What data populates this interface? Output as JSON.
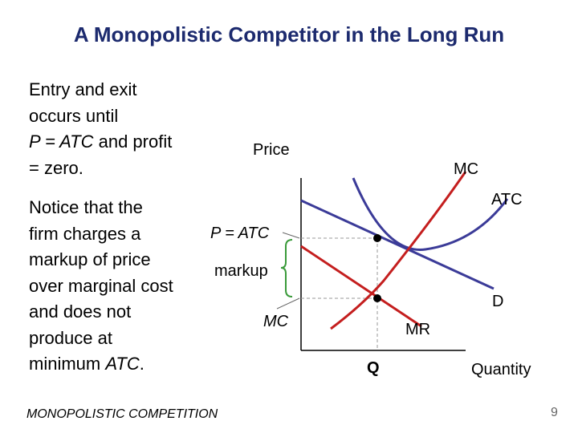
{
  "title": "A Monopolistic Competitor in the Long Run",
  "paragraph1": {
    "line1": "Entry and exit",
    "line2": "occurs until",
    "line3_italic": "P = ATC",
    "line3_rest": "and profit",
    "line4": "= zero."
  },
  "paragraph2": {
    "line1": "Notice that the",
    "line2": "firm charges a",
    "line3": "markup of price",
    "line4": "over marginal cost",
    "line5": "and does not",
    "line6": "produce at",
    "line7_start": "minimum",
    "line7_italic": "ATC",
    "line7_end": "."
  },
  "diagram": {
    "y_axis_label": "Price",
    "x_axis_label": "Quantity",
    "mc_curve_label": "MC",
    "atc_curve_label": "ATC",
    "demand_label": "D",
    "mr_label": "MR",
    "quantity_label": "Q",
    "price_label": "P = ATC",
    "markup_label": "markup",
    "mc_level_label": "MC"
  },
  "footer": "MONOPOLISTIC COMPETITION",
  "page_number": "9"
}
